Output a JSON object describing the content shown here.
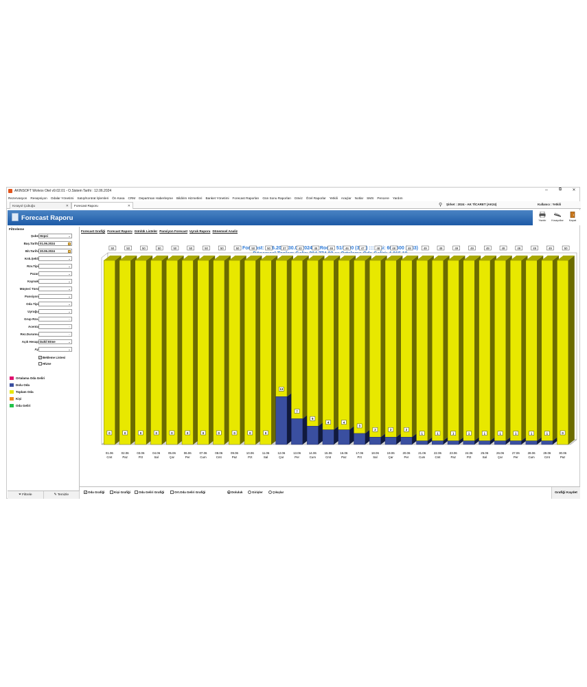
{
  "window": {
    "title": "AKINSOFT Wolvox Otel v9.02.01 - O.Sistem Tarihi : 12.06.2024",
    "controls": [
      "–",
      "⧉",
      "✕"
    ]
  },
  "menu": [
    "Rezervasyon",
    "Resepsiyon",
    "Odalar Yönetimi",
    "Satış/Kontrat İşlemleri",
    "Ön Kasa",
    "CRM",
    "Departman Haberleşme",
    "Bildirim Hizmetleri",
    "Banket Yönetimi",
    "Forecast Raporları",
    "Gün Sonu Raporları",
    "Döviz",
    "Özel Raporlar",
    "Yetkili",
    "Araçlar",
    "Notlar",
    "SMS",
    "Pencere",
    "Yardım"
  ],
  "tabs": [
    {
      "label": "Kısayol Çubuğu",
      "close": "✕"
    },
    {
      "label": "Forecast Raporu",
      "close": "✕"
    }
  ],
  "company": "Şirket : 2024 - AK TİCARET (AK24)",
  "user": "Kullanıcı : Yetkili",
  "header": {
    "title": "Forecast Raporu",
    "buttons": [
      {
        "label": "Yazdır"
      },
      {
        "label": "Kısayollar"
      },
      {
        "label": "Kapat"
      }
    ]
  },
  "filters": {
    "heading": "Filtreleme",
    "fields": [
      {
        "label": "Şube",
        "value": "Hepsi",
        "kind": "combo"
      },
      {
        "label": "Baş.Tarihi",
        "value": "01.06.2024",
        "kind": "date"
      },
      {
        "label": "Bit.Tarihi",
        "value": "30.06.2024",
        "kind": "date"
      },
      {
        "label": "Knk.Şekli",
        "value": "",
        "kind": "combo"
      },
      {
        "label": "Rzv.Tipi",
        "value": "",
        "kind": "combo"
      },
      {
        "label": "Pazar",
        "value": "",
        "kind": "combo"
      },
      {
        "label": "Kaynak",
        "value": "",
        "kind": "combo"
      },
      {
        "label": "Müşteri Türü",
        "value": "",
        "kind": "combo"
      },
      {
        "label": "Pansiyon",
        "value": "",
        "kind": "combo"
      },
      {
        "label": "Oda Tipi",
        "value": "",
        "kind": "combo"
      },
      {
        "label": "Uyruğu",
        "value": "",
        "kind": "combo"
      },
      {
        "label": "Grup Rzv.",
        "value": "",
        "kind": "lookup"
      },
      {
        "label": "Acenta",
        "value": "",
        "kind": "lookup"
      },
      {
        "label": "Rez.Durumu",
        "value": "",
        "kind": "lookup"
      },
      {
        "label": "Açık Hesap",
        "value": "Dahil Etme",
        "kind": "combo"
      },
      {
        "label": "Ay",
        "value": "",
        "kind": "combo"
      }
    ],
    "checks": [
      {
        "label": "Bekleme Listesi",
        "checked": true
      },
      {
        "label": "H/Use",
        "checked": false
      }
    ]
  },
  "legend": [
    {
      "label": "Ortalama Oda Geliri",
      "color": "#e0106e"
    },
    {
      "label": "Dolu Oda",
      "color": "#3a4fa0"
    },
    {
      "label": "Toplam Oda",
      "color": "#e8e800"
    },
    {
      "label": "Kişi",
      "color": "#f08c1a"
    },
    {
      "label": "Oda Geliri",
      "color": "#22c24a"
    }
  ],
  "sidebar_footer": {
    "filter": "Filtrele",
    "clear": "Temizle"
  },
  "subtabs": [
    "Forecast Grafiği",
    "Forecast Raporu",
    "Günlük Listeler",
    "Pansiyon Forecast",
    "Uyruk Raporu",
    "Dönemsel Analiz"
  ],
  "chart_titles": {
    "line1": "Forecast: 1.06.2024-30.06.2024  :::  Room: 51/1500 (3,40)  :::  Kişi: 66/3600 (1,83)",
    "line2": "Dönemsel Toplam Gelir: 204.774,82  :::  Ortalama Oda Geliri: 4.015,19"
  },
  "chart_data": {
    "type": "bar",
    "title": "Forecast: 1.06.2024-30.06.2024  :::  Room: 51/1500 (3,40)  :::  Kişi: 66/3600 (1,83)",
    "categories": [
      "01.06",
      "02.06",
      "03.06",
      "04.06",
      "05.06",
      "06.06",
      "07.06",
      "08.06",
      "09.06",
      "10.06",
      "11.06",
      "12.06",
      "13.06",
      "14.06",
      "15.06",
      "16.06",
      "17.06",
      "18.06",
      "19.06",
      "20.06",
      "21.06",
      "22.06",
      "23.06",
      "24.06",
      "25.06",
      "26.06",
      "27.06",
      "28.06",
      "29.06",
      "30.06"
    ],
    "day_labels": [
      "Cmt",
      "Paz",
      "Pzt",
      "Sal",
      "Çar",
      "Per",
      "Cum",
      "Cmt",
      "Paz",
      "Pzt",
      "Sal",
      "Çar",
      "Per",
      "Cum",
      "Cmt",
      "Paz",
      "Pzt",
      "Sal",
      "Çar",
      "Per",
      "Cum",
      "Cmt",
      "Paz",
      "Pzt",
      "Sal",
      "Çar",
      "Per",
      "Cum",
      "Cmt",
      "Paz"
    ],
    "series": [
      {
        "name": "Toplam Oda",
        "color": "#e8e800",
        "values": [
          50,
          50,
          50,
          50,
          50,
          50,
          50,
          50,
          50,
          50,
          50,
          37,
          43,
          45,
          46,
          46,
          47,
          48,
          48,
          48,
          49,
          49,
          49,
          49,
          49,
          49,
          49,
          49,
          49,
          50
        ]
      },
      {
        "name": "Dolu Oda",
        "color": "#3a4fa0",
        "values": [
          0,
          0,
          0,
          0,
          0,
          0,
          0,
          0,
          0,
          0,
          0,
          13,
          7,
          5,
          4,
          4,
          3,
          2,
          2,
          2,
          1,
          1,
          1,
          1,
          1,
          1,
          1,
          1,
          1,
          0
        ]
      }
    ],
    "ylim": [
      0,
      50
    ],
    "legend": "left"
  },
  "chart_footer": {
    "checks": [
      {
        "label": "Oda Grafiği",
        "checked": true
      },
      {
        "label": "Kişi Grafiği",
        "checked": false
      },
      {
        "label": "Oda Geliri Grafiği",
        "checked": false
      },
      {
        "label": "Ort.Oda Geliri Grafiği",
        "checked": false
      }
    ],
    "radios": [
      {
        "label": "Doluluk",
        "checked": true
      },
      {
        "label": "Girişler",
        "checked": false
      },
      {
        "label": "Çıkışlar",
        "checked": false
      }
    ],
    "save": "Grafiği Kaydet"
  }
}
